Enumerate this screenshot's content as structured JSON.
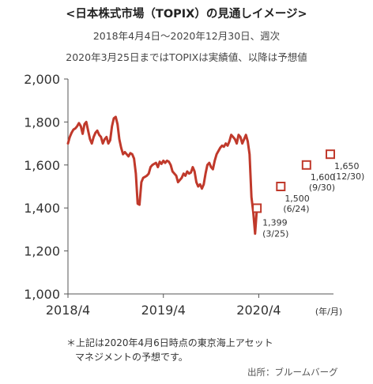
{
  "title": "<日本株式市場（TOPIX）の見通しイメージ>",
  "subtitle1": "2018年4月4日～2020年12月30日、週次",
  "subtitle2": "2020年3月25日まではTOPIXは実績値、以降は予想値",
  "note_line1": "＊上記は2020年4月6日時点の東京海上アセット",
  "note_line2": "マネジメントの予想です。",
  "source": "出所：ブルームバーグ",
  "colors": {
    "line": "#c0392b",
    "axis": "#555555",
    "text": "#333333"
  },
  "chart_data": {
    "type": "line",
    "xlabel": "(年/月)",
    "ylabel": "",
    "ylim": [
      1000,
      2000
    ],
    "yticks": [
      1000,
      1200,
      1400,
      1600,
      1800,
      2000
    ],
    "ytick_labels": [
      "1,000",
      "1,200",
      "1,400",
      "1,600",
      "1,800",
      "2,000"
    ],
    "xticks": [
      {
        "date": "2018-04-04",
        "label": "2018/4"
      },
      {
        "date": "2019-04-03",
        "label": "2019/4"
      },
      {
        "date": "2020-04-01",
        "label": "2020/4"
      }
    ],
    "xlim": [
      "2018-04-04",
      "2020-12-30"
    ],
    "grid": false,
    "series": [
      {
        "type": "line",
        "points": [
          [
            "2018-04-04",
            1700
          ],
          [
            "2018-04-11",
            1730
          ],
          [
            "2018-04-18",
            1750
          ],
          [
            "2018-04-25",
            1765
          ],
          [
            "2018-05-02",
            1770
          ],
          [
            "2018-05-09",
            1780
          ],
          [
            "2018-05-16",
            1795
          ],
          [
            "2018-05-23",
            1780
          ],
          [
            "2018-05-30",
            1745
          ],
          [
            "2018-06-06",
            1790
          ],
          [
            "2018-06-13",
            1800
          ],
          [
            "2018-06-20",
            1760
          ],
          [
            "2018-06-27",
            1720
          ],
          [
            "2018-07-04",
            1700
          ],
          [
            "2018-07-11",
            1730
          ],
          [
            "2018-07-18",
            1750
          ],
          [
            "2018-07-25",
            1760
          ],
          [
            "2018-08-01",
            1740
          ],
          [
            "2018-08-08",
            1730
          ],
          [
            "2018-08-15",
            1700
          ],
          [
            "2018-08-22",
            1720
          ],
          [
            "2018-08-29",
            1730
          ],
          [
            "2018-09-05",
            1700
          ],
          [
            "2018-09-12",
            1715
          ],
          [
            "2018-09-19",
            1780
          ],
          [
            "2018-09-26",
            1817
          ],
          [
            "2018-10-03",
            1824
          ],
          [
            "2018-10-10",
            1790
          ],
          [
            "2018-10-17",
            1720
          ],
          [
            "2018-10-24",
            1680
          ],
          [
            "2018-10-31",
            1650
          ],
          [
            "2018-11-07",
            1660
          ],
          [
            "2018-11-14",
            1650
          ],
          [
            "2018-11-21",
            1640
          ],
          [
            "2018-11-28",
            1655
          ],
          [
            "2018-12-05",
            1650
          ],
          [
            "2018-12-12",
            1630
          ],
          [
            "2018-12-19",
            1560
          ],
          [
            "2018-12-26",
            1420
          ],
          [
            "2019-01-02",
            1415
          ],
          [
            "2019-01-09",
            1520
          ],
          [
            "2019-01-16",
            1540
          ],
          [
            "2019-01-23",
            1545
          ],
          [
            "2019-01-30",
            1550
          ],
          [
            "2019-02-06",
            1560
          ],
          [
            "2019-02-13",
            1590
          ],
          [
            "2019-02-20",
            1600
          ],
          [
            "2019-02-27",
            1605
          ],
          [
            "2019-03-06",
            1610
          ],
          [
            "2019-03-13",
            1590
          ],
          [
            "2019-03-20",
            1615
          ],
          [
            "2019-03-27",
            1605
          ],
          [
            "2019-04-03",
            1620
          ],
          [
            "2019-04-10",
            1610
          ],
          [
            "2019-04-17",
            1620
          ],
          [
            "2019-04-24",
            1615
          ],
          [
            "2019-05-01",
            1600
          ],
          [
            "2019-05-08",
            1570
          ],
          [
            "2019-05-15",
            1560
          ],
          [
            "2019-05-22",
            1550
          ],
          [
            "2019-05-29",
            1520
          ],
          [
            "2019-06-05",
            1530
          ],
          [
            "2019-06-12",
            1540
          ],
          [
            "2019-06-19",
            1560
          ],
          [
            "2019-06-26",
            1550
          ],
          [
            "2019-07-03",
            1570
          ],
          [
            "2019-07-10",
            1560
          ],
          [
            "2019-07-17",
            1565
          ],
          [
            "2019-07-24",
            1590
          ],
          [
            "2019-07-31",
            1570
          ],
          [
            "2019-08-07",
            1520
          ],
          [
            "2019-08-14",
            1500
          ],
          [
            "2019-08-21",
            1510
          ],
          [
            "2019-08-28",
            1490
          ],
          [
            "2019-09-04",
            1510
          ],
          [
            "2019-09-11",
            1560
          ],
          [
            "2019-09-18",
            1600
          ],
          [
            "2019-09-25",
            1610
          ],
          [
            "2019-10-02",
            1590
          ],
          [
            "2019-10-09",
            1580
          ],
          [
            "2019-10-16",
            1620
          ],
          [
            "2019-10-23",
            1650
          ],
          [
            "2019-10-30",
            1665
          ],
          [
            "2019-11-06",
            1680
          ],
          [
            "2019-11-13",
            1690
          ],
          [
            "2019-11-20",
            1685
          ],
          [
            "2019-11-27",
            1700
          ],
          [
            "2019-12-04",
            1690
          ],
          [
            "2019-12-11",
            1710
          ],
          [
            "2019-12-18",
            1740
          ],
          [
            "2019-12-25",
            1730
          ],
          [
            "2020-01-01",
            1720
          ],
          [
            "2020-01-08",
            1700
          ],
          [
            "2020-01-15",
            1740
          ],
          [
            "2020-01-22",
            1730
          ],
          [
            "2020-01-29",
            1700
          ],
          [
            "2020-02-05",
            1720
          ],
          [
            "2020-02-12",
            1740
          ],
          [
            "2020-02-19",
            1710
          ],
          [
            "2020-02-26",
            1650
          ],
          [
            "2020-03-04",
            1450
          ],
          [
            "2020-03-11",
            1380
          ],
          [
            "2020-03-18",
            1280
          ],
          [
            "2020-03-25",
            1399
          ]
        ]
      }
    ],
    "forecasts": [
      {
        "date": "2020-03-25",
        "value": 1399,
        "value_label": "1,399",
        "date_label": "(3/25)"
      },
      {
        "date": "2020-06-24",
        "value": 1500,
        "value_label": "1,500",
        "date_label": "(6/24)"
      },
      {
        "date": "2020-09-30",
        "value": 1600,
        "value_label": "1,600",
        "date_label": "(9/30)"
      },
      {
        "date": "2020-12-30",
        "value": 1650,
        "value_label": "1,650",
        "date_label": "(12/30)"
      }
    ]
  }
}
